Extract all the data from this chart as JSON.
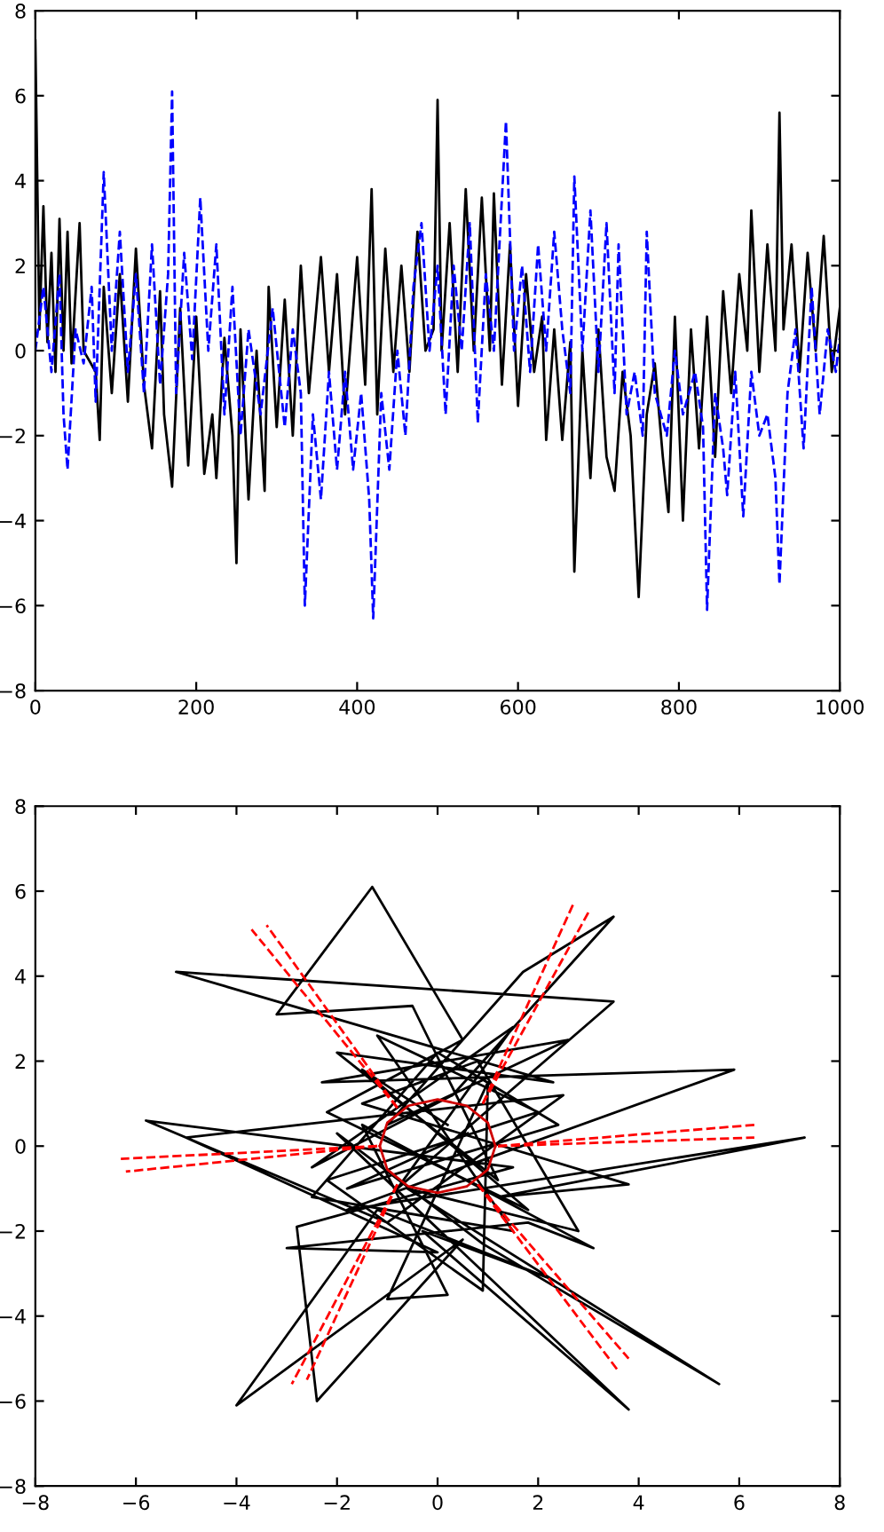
{
  "chart_data": [
    {
      "type": "line",
      "xlim": [
        0,
        1000
      ],
      "ylim": [
        -8,
        8
      ],
      "xticks": [
        0,
        200,
        400,
        600,
        800,
        1000
      ],
      "yticks": [
        -8,
        -6,
        -4,
        -2,
        0,
        2,
        4,
        6,
        8
      ],
      "grid": false,
      "series": [
        {
          "color": "#000000",
          "line_style": "solid",
          "x": [
            0,
            5,
            10,
            15,
            20,
            25,
            30,
            35,
            40,
            45,
            55,
            60,
            75,
            80,
            85,
            95,
            105,
            115,
            125,
            135,
            145,
            155,
            160,
            170,
            180,
            190,
            200,
            210,
            220,
            225,
            235,
            245,
            250,
            255,
            265,
            275,
            285,
            290,
            300,
            310,
            320,
            330,
            340,
            355,
            365,
            375,
            385,
            400,
            410,
            418,
            425,
            435,
            445,
            455,
            465,
            475,
            485,
            495,
            500,
            505,
            515,
            525,
            535,
            545,
            555,
            565,
            570,
            580,
            590,
            600,
            610,
            620,
            630,
            635,
            645,
            655,
            665,
            670,
            680,
            690,
            700,
            710,
            720,
            730,
            740,
            750,
            760,
            770,
            780,
            787,
            795,
            805,
            815,
            825,
            835,
            845,
            855,
            865,
            875,
            885,
            890,
            900,
            910,
            920,
            925,
            930,
            940,
            950,
            960,
            970,
            980,
            990,
            1000
          ],
          "values": [
            7.3,
            0.5,
            3.4,
            0.2,
            2.3,
            -0.5,
            3.1,
            0.0,
            2.8,
            -0.3,
            3.0,
            0.0,
            -0.5,
            -2.1,
            1.5,
            -1.0,
            1.8,
            -1.2,
            2.4,
            -0.8,
            -2.3,
            1.4,
            -1.5,
            -3.2,
            1.0,
            -2.7,
            0.8,
            -2.9,
            -1.5,
            -3.0,
            0.3,
            -2.0,
            -5.0,
            0.5,
            -3.5,
            0.0,
            -3.3,
            1.5,
            -1.8,
            1.2,
            -2.0,
            2.0,
            -1.0,
            2.2,
            -0.5,
            1.8,
            -1.5,
            2.2,
            -0.8,
            3.8,
            -1.5,
            2.4,
            -0.5,
            2.0,
            -0.5,
            2.8,
            0.0,
            0.5,
            5.9,
            0.0,
            3.0,
            -0.5,
            3.8,
            0.0,
            3.6,
            0.0,
            3.7,
            -0.8,
            2.5,
            -1.3,
            1.8,
            -0.5,
            0.8,
            -2.1,
            0.5,
            -2.1,
            0.2,
            -5.2,
            0.0,
            -3.0,
            0.5,
            -2.5,
            -3.3,
            -0.5,
            -2.0,
            -5.8,
            -1.5,
            -0.3,
            -2.5,
            -3.8,
            0.8,
            -4.0,
            0.5,
            -2.3,
            0.8,
            -2.5,
            1.4,
            -1.0,
            1.8,
            0.0,
            3.3,
            -0.5,
            2.5,
            0.0,
            5.6,
            0.5,
            2.5,
            -0.5,
            2.3,
            0.0,
            2.7,
            -0.5,
            1.0
          ]
        },
        {
          "color": "#0000ff",
          "line_style": "dashed",
          "x": [
            0,
            10,
            20,
            30,
            35,
            40,
            50,
            60,
            70,
            75,
            85,
            95,
            105,
            115,
            125,
            135,
            145,
            155,
            165,
            170,
            175,
            185,
            195,
            205,
            215,
            225,
            235,
            245,
            255,
            265,
            280,
            295,
            310,
            320,
            330,
            335,
            345,
            355,
            365,
            375,
            385,
            395,
            405,
            415,
            420,
            430,
            440,
            450,
            460,
            470,
            480,
            490,
            500,
            510,
            520,
            530,
            540,
            550,
            560,
            570,
            585,
            595,
            605,
            615,
            625,
            635,
            645,
            655,
            665,
            670,
            680,
            690,
            700,
            710,
            720,
            725,
            735,
            745,
            755,
            760,
            770,
            785,
            795,
            805,
            820,
            830,
            835,
            845,
            855,
            860,
            870,
            880,
            890,
            900,
            910,
            920,
            925,
            935,
            945,
            955,
            965,
            975,
            985,
            995,
            1000
          ],
          "values": [
            0.0,
            1.5,
            -0.5,
            1.8,
            -1.5,
            -2.8,
            0.5,
            -0.3,
            1.5,
            -1.2,
            4.2,
            0.0,
            2.8,
            -0.5,
            1.8,
            -1.0,
            2.5,
            -0.8,
            1.8,
            6.1,
            -1.0,
            2.3,
            -0.2,
            3.6,
            0.0,
            2.5,
            -1.5,
            1.5,
            -2.0,
            0.5,
            -1.5,
            1.0,
            -1.8,
            0.5,
            -1.0,
            -6.0,
            -1.5,
            -3.5,
            -0.5,
            -2.8,
            -0.5,
            -2.8,
            -1.0,
            -3.5,
            -6.3,
            -1.0,
            -2.8,
            0.0,
            -2.0,
            1.5,
            3.0,
            0.0,
            2.0,
            -1.5,
            2.0,
            0.0,
            3.0,
            -1.7,
            1.8,
            0.0,
            5.4,
            0.0,
            2.0,
            -0.5,
            2.5,
            0.0,
            2.8,
            0.5,
            -1.0,
            4.1,
            0.0,
            3.3,
            -0.5,
            3.0,
            -1.0,
            2.5,
            -1.5,
            -0.5,
            -2.0,
            2.8,
            -1.0,
            -2.0,
            0.0,
            -1.5,
            -0.5,
            -1.8,
            -6.1,
            -1.0,
            -2.3,
            -3.4,
            -0.5,
            -3.9,
            -0.5,
            -2.0,
            -1.5,
            -3.0,
            -5.5,
            -1.0,
            0.5,
            -2.3,
            1.5,
            -1.5,
            0.5,
            -0.5,
            0.3
          ]
        }
      ]
    },
    {
      "type": "line",
      "xlim": [
        -8,
        8
      ],
      "ylim": [
        -8,
        8
      ],
      "xticks": [
        -8,
        -6,
        -4,
        -2,
        0,
        2,
        4,
        6,
        8
      ],
      "yticks": [
        -8,
        -6,
        -4,
        -2,
        0,
        2,
        4,
        6,
        8
      ],
      "grid": false,
      "series": [
        {
          "color": "#000000",
          "line_style": "solid",
          "x": [
            0.2,
            -1.5,
            1.8,
            -2.2,
            0.5,
            -1.3,
            -3.2,
            -0.5,
            1.2,
            -2.0,
            2.3,
            -5.2,
            3.5,
            -0.8,
            1.5,
            -2.5,
            0.3,
            3.5,
            1.7,
            -1.0,
            2.6,
            -2.3,
            5.9,
            0.5,
            -1.8,
            7.3,
            1.2,
            3.8,
            -1.5,
            0.8,
            2.8,
            -0.6,
            5.6,
            0.9,
            -2.0,
            3.8,
            -0.3,
            2.2,
            -1.2,
            -4.0,
            0.5,
            -2.4,
            -2.8,
            1.5,
            -5.8,
            -1.0,
            2.5,
            -5.0,
            0.0,
            -3.0,
            1.8,
            3.1,
            -1.5,
            0.2,
            -1.0,
            1.0,
            0.9,
            -2.2,
            2.0,
            -1.2,
            1.5,
            -2.5,
            0.0,
            2.4,
            -1.8,
            0.6
          ],
          "values": [
            0.5,
            1.8,
            -1.5,
            0.8,
            2.5,
            6.1,
            3.1,
            3.3,
            -0.8,
            2.2,
            1.5,
            4.1,
            3.4,
            -1.0,
            2.8,
            -0.5,
            1.2,
            5.4,
            4.1,
            0.5,
            2.5,
            1.5,
            1.8,
            -0.5,
            -1.5,
            0.2,
            -1.2,
            -0.9,
            1.0,
            2.0,
            -2.0,
            -1.0,
            -5.6,
            -2.3,
            0.3,
            -6.2,
            -2.0,
            -3.1,
            -1.5,
            -6.1,
            -2.2,
            -6.0,
            -1.9,
            -0.5,
            0.6,
            -1.8,
            1.2,
            0.2,
            -2.5,
            -2.4,
            -1.8,
            -2.4,
            0.5,
            -3.5,
            -3.6,
            1.5,
            -3.4,
            -0.8,
            0.8,
            2.6,
            -2.0,
            -1.2,
            2.2,
            0.5,
            -1.0,
            0.3
          ]
        },
        {
          "color": "#d00000",
          "line_style": "solid",
          "x": [
            -1.15,
            -1.0,
            -0.58,
            0.0,
            0.58,
            1.0,
            1.15
          ],
          "values": [
            0.0,
            0.55,
            0.95,
            1.1,
            0.95,
            0.55,
            0.0
          ]
        },
        {
          "color": "#d00000",
          "line_style": "solid",
          "x": [
            -1.15,
            -1.0,
            -0.58,
            0.0,
            0.58,
            1.0,
            1.15
          ],
          "values": [
            0.0,
            -0.55,
            -0.95,
            -1.1,
            -0.95,
            -0.55,
            0.0
          ]
        },
        {
          "color": "#ff0000",
          "line_style": "dashed",
          "x": [
            -0.8,
            -3.7
          ],
          "values": [
            0.9,
            5.1
          ]
        },
        {
          "color": "#ff0000",
          "line_style": "dashed",
          "x": [
            -0.8,
            -3.4
          ],
          "values": [
            0.9,
            5.2
          ]
        },
        {
          "color": "#ff0000",
          "line_style": "dashed",
          "x": [
            0.9,
            2.7
          ],
          "values": [
            1.0,
            5.7
          ]
        },
        {
          "color": "#ff0000",
          "line_style": "dashed",
          "x": [
            0.9,
            3.0
          ],
          "values": [
            1.0,
            5.5
          ]
        },
        {
          "color": "#ff0000",
          "line_style": "dashed",
          "x": [
            1.2,
            6.3
          ],
          "values": [
            0.0,
            0.5
          ]
        },
        {
          "color": "#ff0000",
          "line_style": "dashed",
          "x": [
            1.2,
            6.3
          ],
          "values": [
            0.0,
            0.2
          ]
        },
        {
          "color": "#ff0000",
          "line_style": "dashed",
          "x": [
            -1.2,
            -6.3
          ],
          "values": [
            0.0,
            -0.3
          ]
        },
        {
          "color": "#ff0000",
          "line_style": "dashed",
          "x": [
            -1.2,
            -6.2
          ],
          "values": [
            0.0,
            -0.6
          ]
        },
        {
          "color": "#ff0000",
          "line_style": "dashed",
          "x": [
            -0.8,
            -2.9
          ],
          "values": [
            -0.9,
            -5.6
          ]
        },
        {
          "color": "#ff0000",
          "line_style": "dashed",
          "x": [
            -0.8,
            -2.6
          ],
          "values": [
            -0.9,
            -5.5
          ]
        },
        {
          "color": "#ff0000",
          "line_style": "dashed",
          "x": [
            0.8,
            3.6
          ],
          "values": [
            -0.9,
            -5.3
          ]
        },
        {
          "color": "#ff0000",
          "line_style": "dashed",
          "x": [
            0.8,
            3.8
          ],
          "values": [
            -0.9,
            -5.0
          ]
        }
      ]
    }
  ]
}
